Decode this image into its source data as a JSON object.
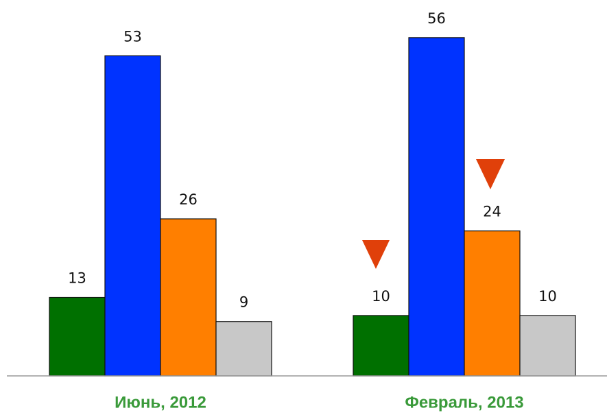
{
  "chart_data": {
    "type": "bar",
    "categories": [
      "Июнь, 2012",
      "Февраль, 2013"
    ],
    "series": [
      {
        "color": "#007000",
        "values": [
          13,
          10
        ]
      },
      {
        "color": "#0033ff",
        "values": [
          53,
          56
        ]
      },
      {
        "color": "#ff7f00",
        "values": [
          26,
          24
        ]
      },
      {
        "color": "#c8c8c8",
        "values": [
          9,
          10
        ]
      }
    ],
    "ylim": [
      0,
      62
    ]
  }
}
